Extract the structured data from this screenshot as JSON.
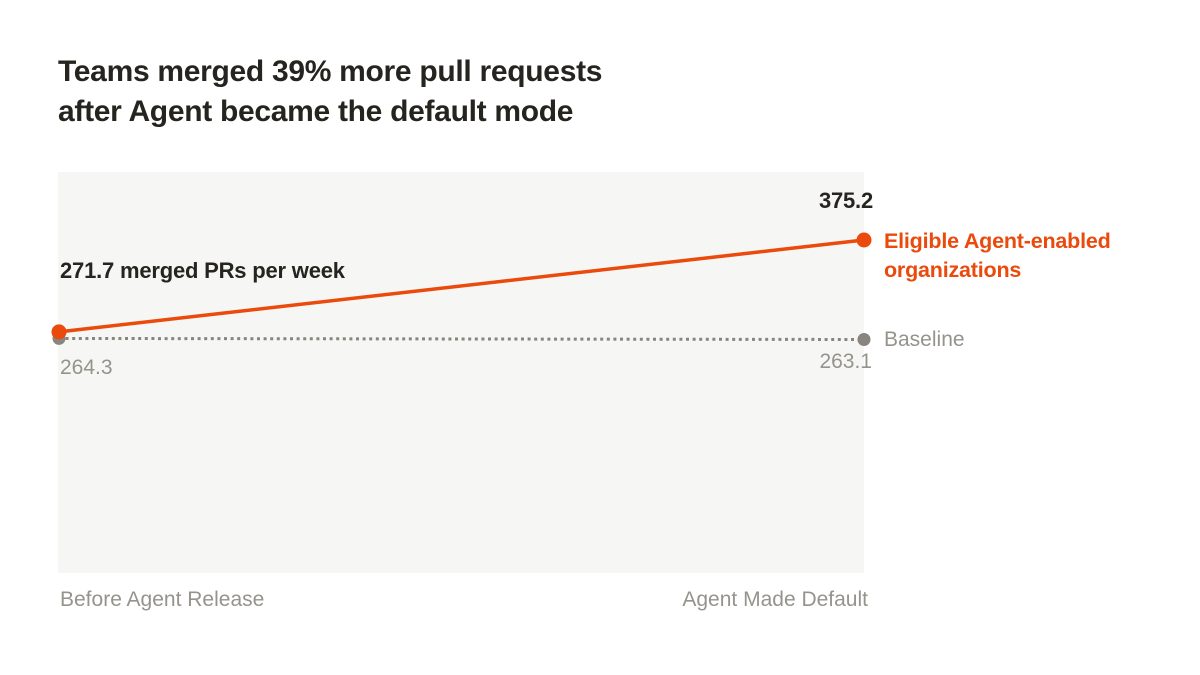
{
  "header": {
    "line1": "Teams merged 39% more pull requests",
    "line2": "after Agent became the default mode"
  },
  "chart_data": {
    "type": "line",
    "title": "Teams merged 39% more pull requests after Agent became the default mode",
    "categories": [
      "Before Agent Release",
      "Agent Made Default"
    ],
    "series": [
      {
        "id": "agent",
        "name": "Eligible Agent-enabled organizations",
        "values": [
          271.7,
          375.2
        ],
        "color": "#ea4a0c",
        "style": "solid"
      },
      {
        "id": "baseline",
        "name": "Baseline",
        "values": [
          264.3,
          263.1
        ],
        "color": "#87857e",
        "style": "dotted"
      }
    ],
    "point_labels": {
      "agent_start": "271.7 merged PRs per week",
      "agent_end": "375.2",
      "baseline_start": "264.3",
      "baseline_end": "263.1"
    },
    "ylabel": "merged PRs per week",
    "xlabel": "",
    "grid": false,
    "legend_position": "right"
  },
  "colors": {
    "accent": "#ea4a0c",
    "muted_text": "#95938c",
    "title_text": "#26241e",
    "panel_bg": "#f6f6f4",
    "page_bg": "#ffffff"
  }
}
